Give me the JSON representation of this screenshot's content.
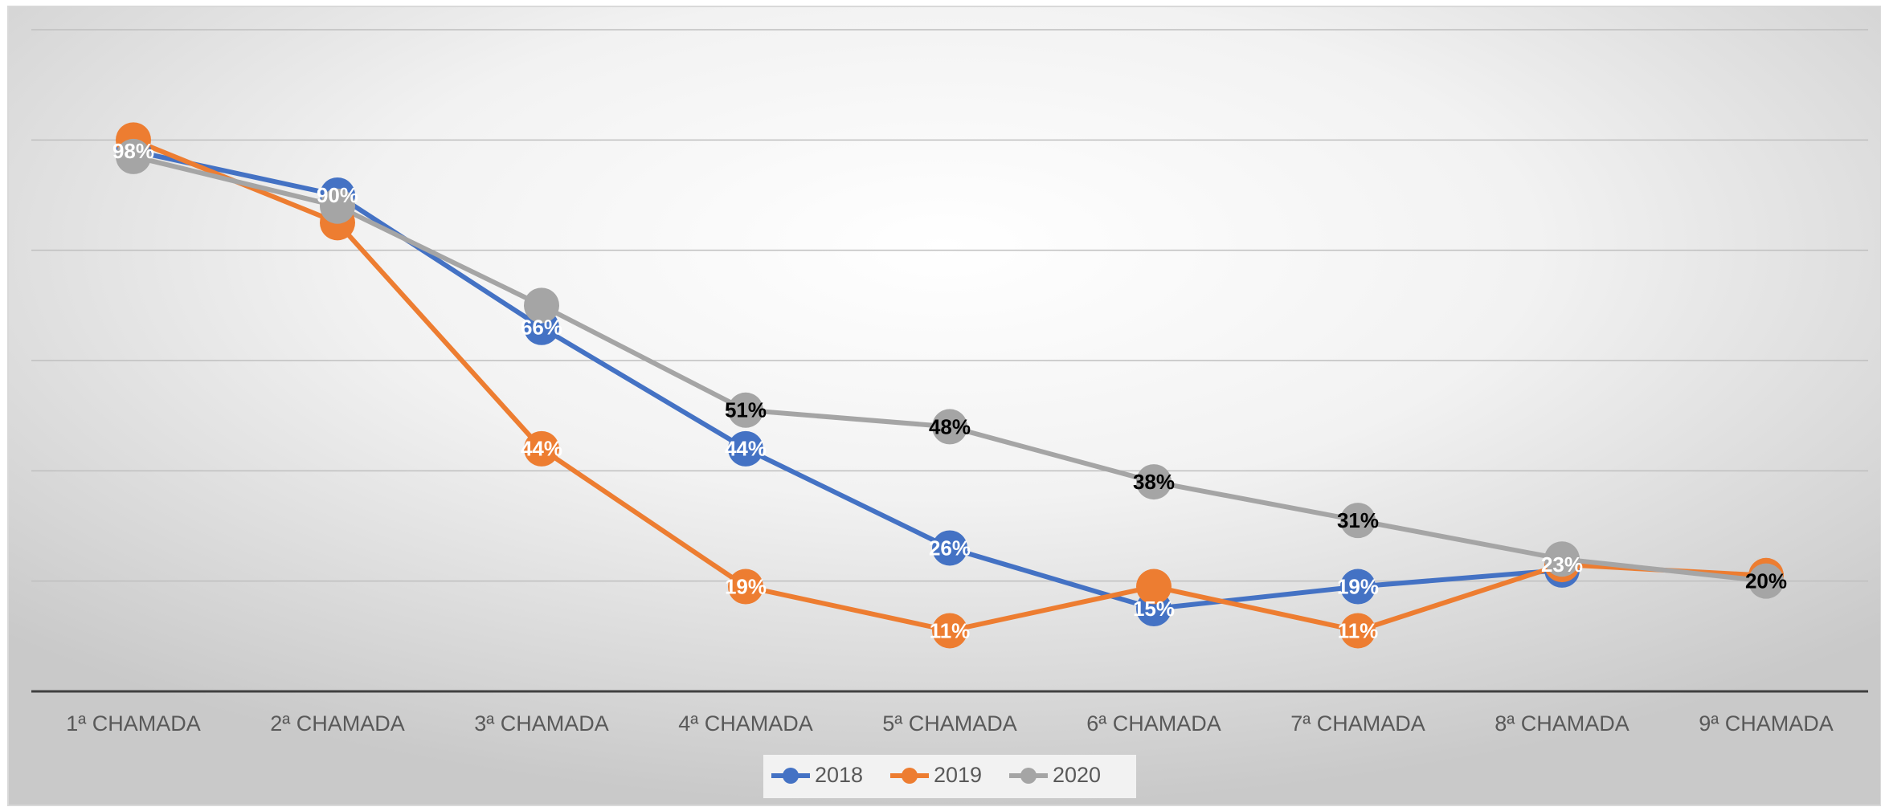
{
  "chart_data": {
    "type": "line",
    "categories": [
      "1ª CHAMADA",
      "2ª CHAMADA",
      "3ª CHAMADA",
      "4ª CHAMADA",
      "5ª CHAMADA",
      "6ª CHAMADA",
      "7ª CHAMADA",
      "8ª CHAMADA",
      "9ª CHAMADA"
    ],
    "series": [
      {
        "name": "2018",
        "color": "#4472c4",
        "label_color": "#ffffff",
        "values": [
          98,
          90,
          66,
          44,
          26,
          15,
          19,
          22,
          null
        ],
        "value_labels": [
          "98%",
          "90%",
          "66%",
          "44%",
          "26%",
          "15%",
          "19%",
          null,
          null
        ]
      },
      {
        "name": "2019",
        "color": "#ed7d31",
        "label_color": "#ffffff",
        "values": [
          100,
          85,
          44,
          19,
          11,
          19,
          11,
          23,
          21
        ],
        "value_labels": [
          null,
          null,
          "44%",
          "19%",
          "11%",
          null,
          "11%",
          "23%",
          null
        ]
      },
      {
        "name": "2020",
        "color": "#a5a5a5",
        "label_color": "#000000",
        "values": [
          97,
          88,
          70,
          51,
          48,
          38,
          31,
          24,
          20
        ],
        "value_labels": [
          null,
          null,
          null,
          "51%",
          "48%",
          "38%",
          "31%",
          null,
          "20%"
        ]
      }
    ],
    "ylim": [
      0,
      120
    ],
    "yticks": [
      0,
      20,
      40,
      60,
      80,
      100,
      120
    ],
    "grid": true,
    "legend": "bottom"
  }
}
